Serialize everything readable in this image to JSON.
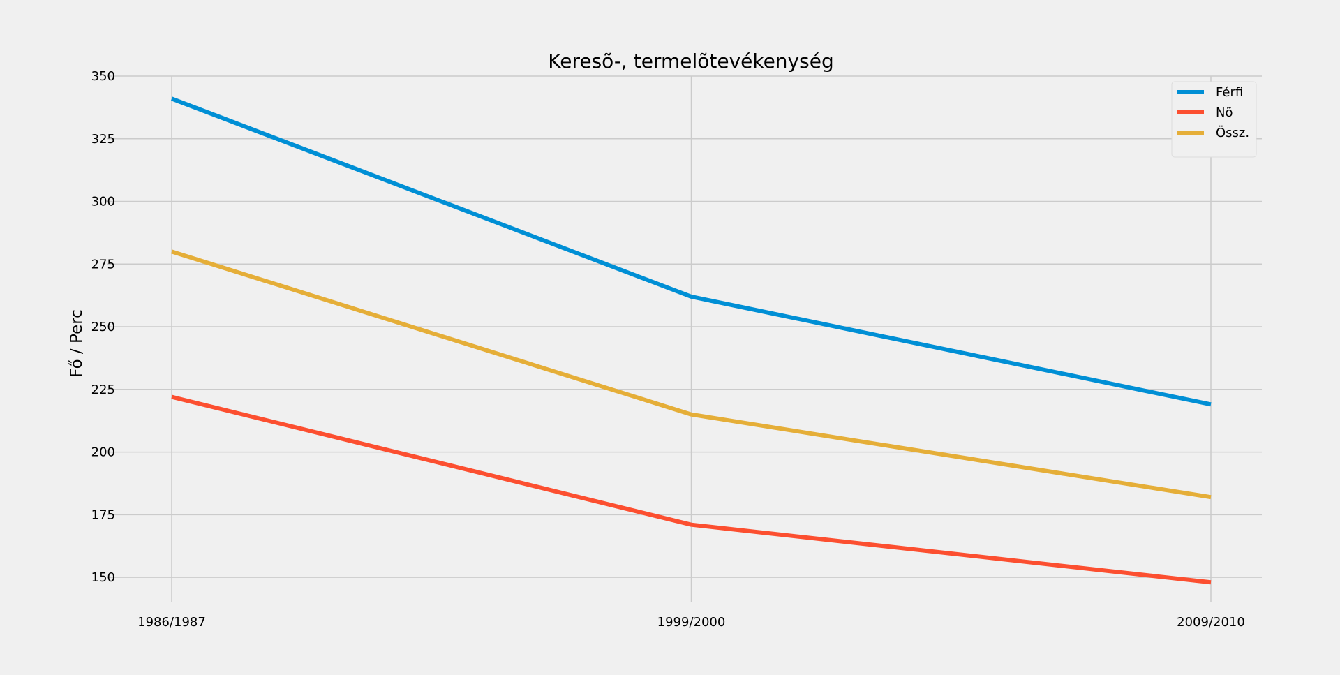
{
  "chart_data": {
    "type": "line",
    "title": "Keresõ-, termelõtevékenység",
    "xlabel": "",
    "ylabel": "Fő / Perc",
    "categories": [
      "1986/1987",
      "1999/2000",
      "2009/2010"
    ],
    "series": [
      {
        "name": "Férfi",
        "color": "#008fd5",
        "values": [
          341,
          262,
          219
        ]
      },
      {
        "name": "Nõ",
        "color": "#fc4f30",
        "values": [
          222,
          171,
          148
        ]
      },
      {
        "name": "Össz.",
        "color": "#e5ae38",
        "values": [
          280,
          215,
          182
        ]
      }
    ],
    "ylim": [
      140,
      350
    ],
    "yticks": [
      150,
      175,
      200,
      225,
      250,
      275,
      300,
      325,
      350
    ],
    "grid": true,
    "legend_position": "top-right",
    "background": "#f0f0f0",
    "grid_color": "#cbcbcb"
  }
}
